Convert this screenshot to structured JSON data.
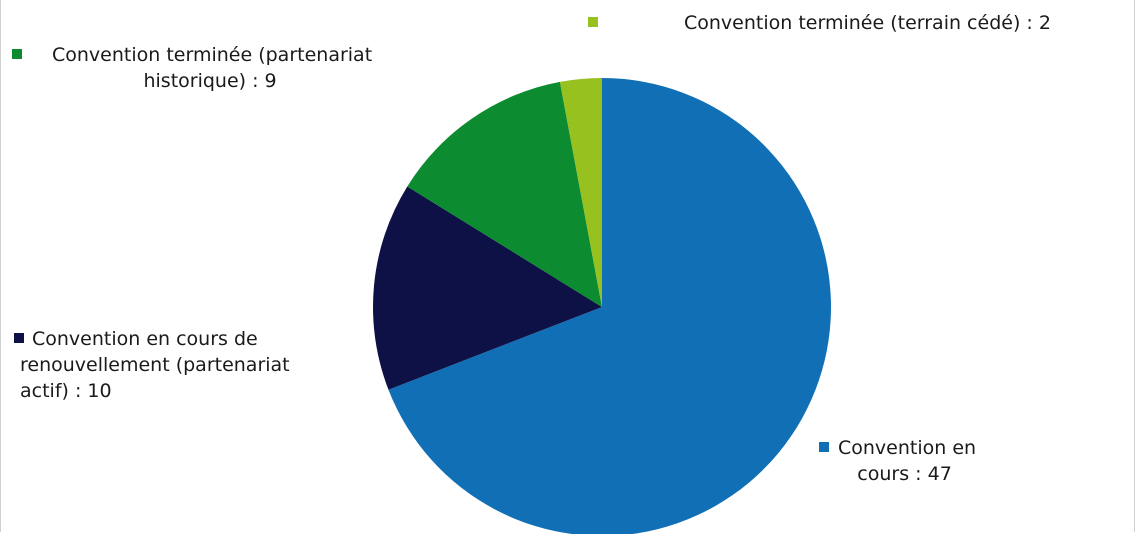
{
  "chart_data": {
    "type": "pie",
    "title": "",
    "slices": [
      {
        "label": "Convention en cours : 47",
        "value": 47,
        "color": "#1170b5"
      },
      {
        "label": "Convention en cours de renouvellement (partenariat actif) : 10",
        "value": 10,
        "color": "#0e1146"
      },
      {
        "label": "Convention terminée (partenariat historique) : 9",
        "value": 9,
        "color": "#0d8b30"
      },
      {
        "label": "Convention terminée (terrain cédé) : 2",
        "value": 2,
        "color": "#96c11f"
      }
    ],
    "labels": {
      "en_cours": {
        "line1": "Convention en",
        "line2": "cours : 47"
      },
      "renouvellement": {
        "line1": "Convention en cours de",
        "line2": "renouvellement (partenariat",
        "line3": "actif) : 10"
      },
      "termine_historique": {
        "line1": "Convention terminée (partenariat",
        "line2": "historique) : 9"
      },
      "termine_cede": {
        "line1": "Convention terminée (terrain cédé) : 2"
      }
    },
    "start_angle": "12 o'clock",
    "direction": "clockwise",
    "legend": "labels next to slices"
  }
}
